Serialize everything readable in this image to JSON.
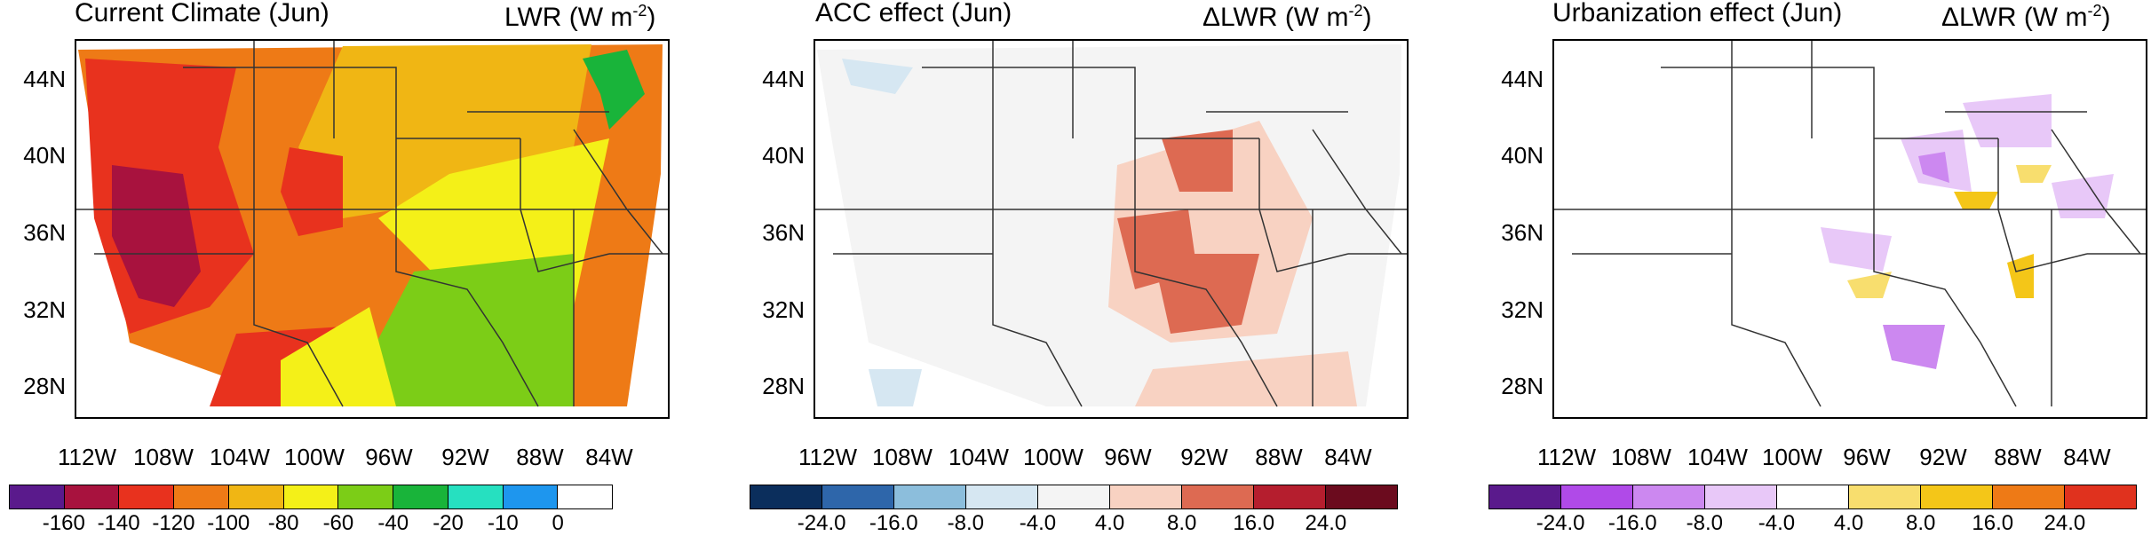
{
  "panels": [
    {
      "title": "Current Climate (Jun)",
      "unit_main": "LWR (W m",
      "unit_sup": "-2",
      "unit_close": ")",
      "colorbar_colors": [
        "#5a1a8c",
        "#a8123e",
        "#e8321e",
        "#ee7a16",
        "#f0b614",
        "#f4f018",
        "#7ccd17",
        "#19b43a",
        "#26e0c0",
        "#1e96ee",
        "#ffffff"
      ],
      "colorbar_ticks": [
        "-160",
        "-140",
        "-120",
        "-100",
        "-80",
        "-60",
        "-40",
        "-20",
        "-10",
        "0"
      ]
    },
    {
      "title": "ACC effect (Jun)",
      "unit_main": "ΔLWR (W m",
      "unit_sup": "-2",
      "unit_close": ")",
      "colorbar_colors": [
        "#0b2e5c",
        "#2e66aa",
        "#8cbedc",
        "#d6e7f2",
        "#f4f4f4",
        "#f8d2c2",
        "#dd6a52",
        "#b51e2e",
        "#6b0b1e"
      ],
      "colorbar_ticks": [
        "-24.0",
        "-16.0",
        "-8.0",
        "-4.0",
        "4.0",
        "8.0",
        "16.0",
        "24.0"
      ]
    },
    {
      "title": "Urbanization effect (Jun)",
      "unit_main": "ΔLWR (W m",
      "unit_sup": "-2",
      "unit_close": ")",
      "colorbar_colors": [
        "#5a1a8c",
        "#b04ae8",
        "#cc88f0",
        "#e8c8f8",
        "#ffffff",
        "#f8de6e",
        "#f4c618",
        "#ee7a16",
        "#e0321e"
      ],
      "colorbar_ticks": [
        "-24.0",
        "-16.0",
        "-8.0",
        "-4.0",
        "4.0",
        "8.0",
        "16.0",
        "24.0"
      ]
    }
  ],
  "lat_labels": [
    "44N",
    "40N",
    "36N",
    "32N",
    "28N"
  ],
  "lon_labels": [
    "112W",
    "108W",
    "104W",
    "100W",
    "96W",
    "92W",
    "88W",
    "84W"
  ]
}
